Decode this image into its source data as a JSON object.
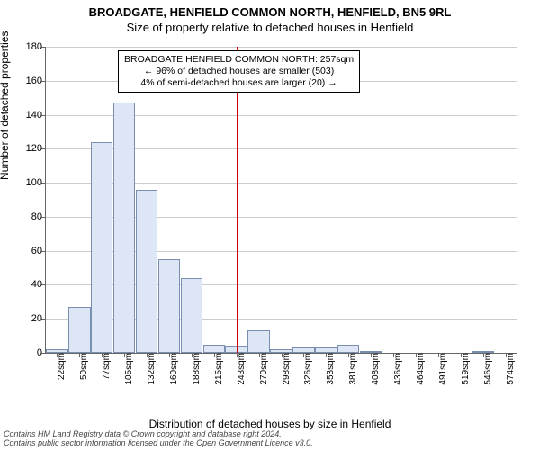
{
  "title_main": "BROADGATE, HENFIELD COMMON NORTH, HENFIELD, BN5 9RL",
  "title_sub": "Size of property relative to detached houses in Henfield",
  "ylabel": "Number of detached properties",
  "xlabel": "Distribution of detached houses by size in Henfield",
  "footer_line1": "Contains HM Land Registry data © Crown copyright and database right 2024.",
  "footer_line2": "Contains public sector information licensed under the Open Government Licence v3.0.",
  "chart": {
    "type": "histogram",
    "ylim": [
      0,
      180
    ],
    "ytick_step": 20,
    "bar_fill": "#dce6f4",
    "bar_stroke": "#7a8fb0",
    "grid_color": "#cccccc",
    "axis_color": "#666666",
    "background": "#ffffff",
    "reference_line": {
      "x_index": 8.5,
      "color": "#cc0000"
    },
    "categories": [
      "22sqm",
      "50sqm",
      "77sqm",
      "105sqm",
      "132sqm",
      "160sqm",
      "188sqm",
      "215sqm",
      "243sqm",
      "270sqm",
      "298sqm",
      "326sqm",
      "353sqm",
      "381sqm",
      "408sqm",
      "436sqm",
      "464sqm",
      "491sqm",
      "519sqm",
      "546sqm",
      "574sqm"
    ],
    "values": [
      2,
      27,
      124,
      147,
      96,
      55,
      44,
      5,
      4,
      13,
      2,
      3,
      3,
      5,
      1,
      0,
      0,
      0,
      0,
      1,
      0
    ]
  },
  "annotation": {
    "line1": "BROADGATE HENFIELD COMMON NORTH: 257sqm",
    "line2": "← 96% of detached houses are smaller (503)",
    "line3": "4% of semi-detached houses are larger (20) →"
  }
}
